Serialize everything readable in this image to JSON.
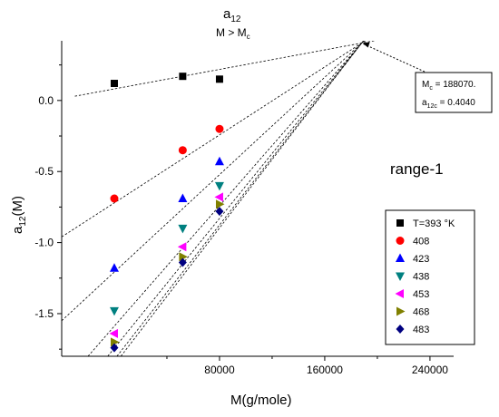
{
  "chart_data": {
    "type": "scatter",
    "title": {
      "main": "a",
      "main_sub": "12",
      "line2_prefix": "M > M",
      "line2_sub": "c"
    },
    "xlabel": "M(g/mole)",
    "ylabel": {
      "prefix": "a",
      "sub": "12",
      "suffix": "(M)"
    },
    "xlim": [
      -40000,
      258000
    ],
    "ylim": [
      -1.8,
      0.42
    ],
    "x_ticks_labeled": [
      {
        "value": 80000,
        "label": "80000"
      },
      {
        "value": 160000,
        "label": "160000"
      },
      {
        "value": 240000,
        "label": "240000"
      }
    ],
    "x_ticks_unlabeled": [
      40000,
      120000,
      200000
    ],
    "y_ticks": [
      {
        "value": 0.0,
        "label": "0.0"
      },
      {
        "value": -0.5,
        "label": "-0.5"
      },
      {
        "value": -1.0,
        "label": "-1.0"
      },
      {
        "value": -1.5,
        "label": "-1.5"
      }
    ],
    "series": [
      {
        "name": "T=393 °K",
        "marker": "square",
        "color": "#000000",
        "x": [
          0,
          52000,
          80000
        ],
        "y": [
          0.12,
          0.17,
          0.15
        ],
        "fit": [
          [
            -30000,
            0.03
          ],
          [
            188070,
            0.404
          ]
        ]
      },
      {
        "name": "408",
        "marker": "circle",
        "color": "#ff0000",
        "x": [
          0,
          52000,
          80000
        ],
        "y": [
          -0.69,
          -0.35,
          -0.2
        ],
        "fit": [
          [
            -40000,
            -0.96
          ],
          [
            188070,
            0.404
          ]
        ]
      },
      {
        "name": "423",
        "marker": "triangle-up",
        "color": "#0000ff",
        "x": [
          0,
          52000,
          80000
        ],
        "y": [
          -1.18,
          -0.69,
          -0.43
        ],
        "fit": [
          [
            -40000,
            -1.55
          ],
          [
            188070,
            0.404
          ]
        ]
      },
      {
        "name": "438",
        "marker": "triangle-down",
        "color": "#008080",
        "x": [
          0,
          52000,
          80000
        ],
        "y": [
          -1.48,
          -0.9,
          -0.6
        ],
        "fit": [
          [
            -20000,
            -1.8
          ],
          [
            188070,
            0.404
          ]
        ]
      },
      {
        "name": "453",
        "marker": "triangle-left",
        "color": "#ff00ff",
        "x": [
          0,
          52000,
          80000
        ],
        "y": [
          -1.64,
          -1.03,
          -0.68
        ],
        "fit": [
          [
            -5000,
            -1.8
          ],
          [
            188070,
            0.404
          ]
        ]
      },
      {
        "name": "468",
        "marker": "triangle-right",
        "color": "#808000",
        "x": [
          0,
          52000,
          80000
        ],
        "y": [
          -1.7,
          -1.1,
          -0.73
        ],
        "fit": [
          [
            2000,
            -1.8
          ],
          [
            188070,
            0.404
          ]
        ]
      },
      {
        "name": "483",
        "marker": "diamond",
        "color": "#000080",
        "x": [
          0,
          52000,
          80000
        ],
        "y": [
          -1.74,
          -1.14,
          -0.78
        ],
        "fit": [
          [
            5000,
            -1.8
          ],
          [
            188070,
            0.404
          ]
        ]
      }
    ],
    "legend_position": "right",
    "annotation": {
      "point": [
        188070,
        0.404
      ],
      "line1_prefix": "M",
      "line1_sub": "c",
      "line1_suffix": " = 188070.",
      "line2_prefix": "a",
      "line2_sub": "12c",
      "line2_suffix": " = 0.4040"
    },
    "range_label": "range-1",
    "grid": false
  }
}
